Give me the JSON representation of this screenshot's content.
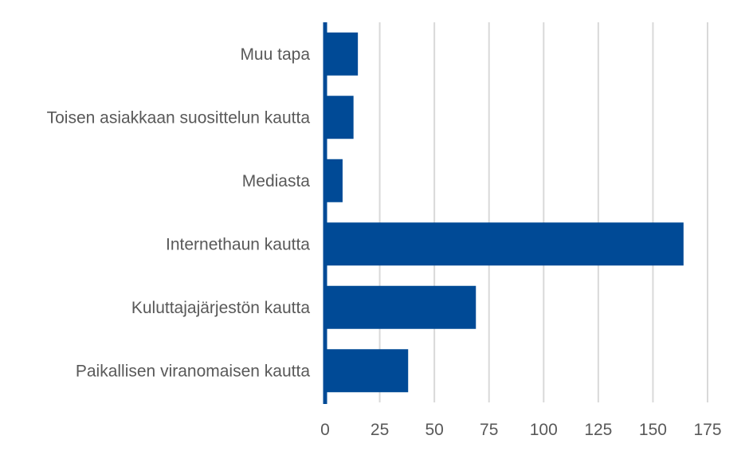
{
  "chart_data": {
    "type": "bar",
    "orientation": "horizontal",
    "categories": [
      "Muu tapa",
      "Toisen asiakkaan suosittelun kautta",
      "Mediasta",
      "Internethaun kautta",
      "Kuluttajajärjestön kautta",
      "Paikallisen viranomaisen kautta"
    ],
    "values": [
      15,
      13,
      8,
      164,
      69,
      38
    ],
    "xlim": [
      0,
      175
    ],
    "xticks": [
      0,
      25,
      50,
      75,
      100,
      125,
      150,
      175
    ],
    "title": "",
    "xlabel": "",
    "ylabel": "",
    "grid": "vertical",
    "legend": "none",
    "bar_color": "#004a96",
    "grid_color": "#d9d9d9",
    "text_color": "#595959"
  }
}
